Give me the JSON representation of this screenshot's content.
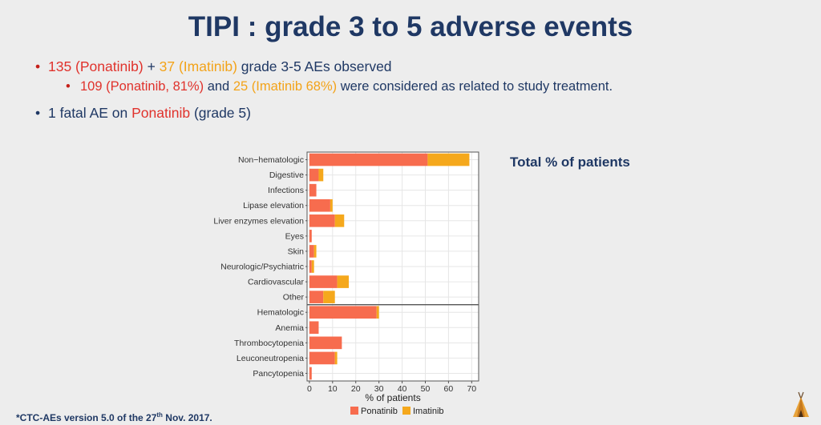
{
  "title": "TIPI : grade 3 to 5 adverse events",
  "bullets": {
    "b1": {
      "pon": "135 (Ponatinib)",
      "plus": " + ",
      "ima": "37 (Imatinib)",
      "rest": " grade 3-5 AEs observed"
    },
    "b2": {
      "pon": "109 (Ponatinib, 81%)",
      "and": " and ",
      "ima": "25 (Imatinib 68%)",
      "rest": " were considered as related to study treatment."
    },
    "b3": {
      "pre": "1 fatal AE on ",
      "pon": "Ponatinib",
      "rest": " (grade 5)"
    }
  },
  "total_label": "Total % of patients",
  "footnote": {
    "pre": "*CTC-AEs version 5.0 of the 27",
    "sup": "th",
    "post": " Nov. 2017."
  },
  "colors": {
    "ponatinib": "#f76c4e",
    "imatinib": "#f5a81c",
    "navy": "#1f3864"
  },
  "chart_data": {
    "type": "bar",
    "orientation": "horizontal",
    "stacked": true,
    "categories": [
      "Non−hematologic",
      "Digestive",
      "Infections",
      "Lipase elevation",
      "Liver enzymes elevation",
      "Eyes",
      "Skin",
      "Neurologic/Psychiatric",
      "Cardiovascular",
      "Other",
      "Hematologic",
      "Anemia",
      "Thrombocytopenia",
      "Leuconeutropenia",
      "Pancytopenia"
    ],
    "series": [
      {
        "name": "Ponatinib",
        "values": [
          51,
          4,
          3,
          9,
          11,
          1,
          2,
          1,
          12,
          6,
          29,
          4,
          14,
          11,
          1
        ]
      },
      {
        "name": "Imatinib",
        "values": [
          18,
          2,
          0,
          1,
          4,
          0,
          1,
          1,
          5,
          5,
          1,
          0,
          0,
          1,
          0
        ]
      }
    ],
    "xlabel": "% of patients",
    "xticks": [
      0,
      10,
      20,
      30,
      40,
      50,
      60,
      70
    ],
    "xlim": [
      -1,
      73
    ],
    "group_separator_after": 9,
    "grid": true,
    "legend_position": "bottom"
  }
}
